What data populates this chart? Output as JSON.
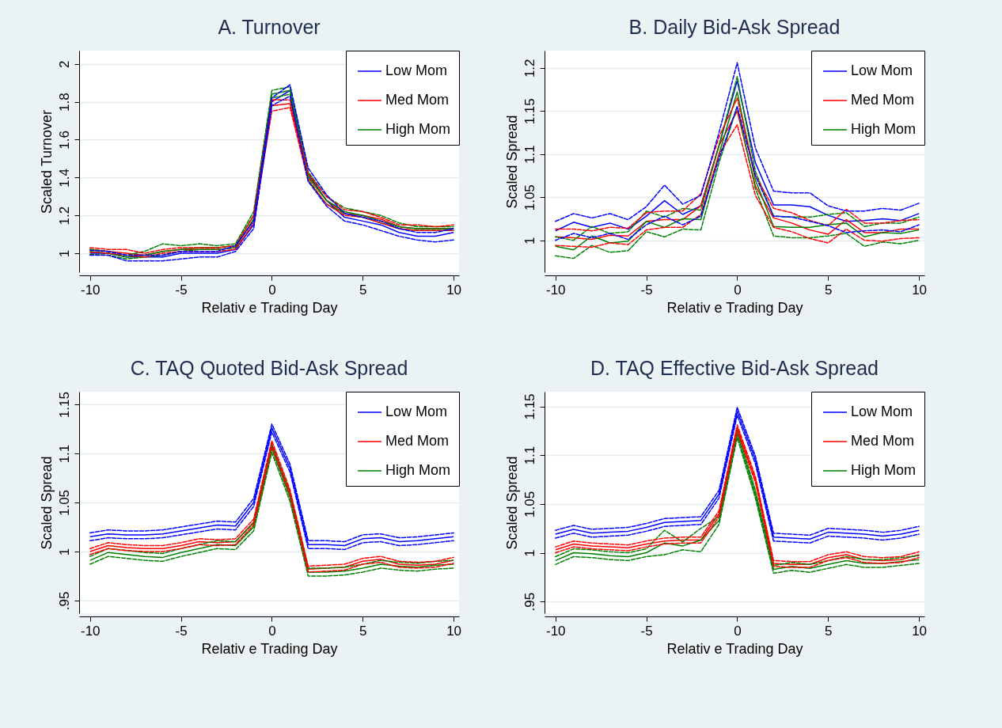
{
  "chart_data": [
    {
      "type": "line",
      "title": "A. Turnover",
      "xlabel": "Relativ e Trading Day",
      "ylabel": "Scaled Turnover",
      "x": [
        -10,
        -9,
        -8,
        -7,
        -6,
        -5,
        -4,
        -3,
        -2,
        -1,
        0,
        1,
        2,
        3,
        4,
        5,
        6,
        7,
        8,
        9,
        10
      ],
      "xlim": [
        -10.6,
        10.3
      ],
      "xticks": [
        -10,
        -5,
        0,
        5,
        10
      ],
      "ylim": [
        0.9,
        2.07
      ],
      "yticks": [
        1,
        1.2,
        1.4,
        1.6,
        1.8,
        2
      ],
      "grid": "y",
      "legend": "top right",
      "line_style": "solid",
      "series": [
        {
          "name": "Low Mom",
          "color": "#0000ff",
          "values": [
            1.0,
            1.0,
            0.98,
            0.98,
            0.98,
            1.0,
            1.0,
            1.0,
            1.02,
            1.15,
            1.8,
            1.86,
            1.42,
            1.28,
            1.19,
            1.17,
            1.15,
            1.11,
            1.09,
            1.09,
            1.11
          ]
        },
        {
          "name": "Med Mom",
          "color": "#ff0000",
          "values": [
            1.02,
            1.01,
            1.0,
            0.99,
            1.01,
            1.02,
            1.02,
            1.02,
            1.03,
            1.18,
            1.78,
            1.79,
            1.4,
            1.28,
            1.21,
            1.2,
            1.18,
            1.14,
            1.13,
            1.13,
            1.13
          ]
        },
        {
          "name": "High Mom",
          "color": "#008000",
          "values": [
            1.01,
            1.0,
            0.98,
            0.99,
            1.01,
            1.02,
            1.03,
            1.03,
            1.04,
            1.2,
            1.84,
            1.86,
            1.41,
            1.28,
            1.22,
            1.2,
            1.17,
            1.14,
            1.13,
            1.13,
            1.13
          ]
        },
        {
          "color": "#0000ff",
          "line_style": "dashed",
          "values": [
            0.99,
            0.99,
            0.96,
            0.96,
            0.96,
            0.97,
            0.98,
            0.98,
            1.01,
            1.13,
            1.78,
            1.83,
            1.38,
            1.25,
            1.17,
            1.15,
            1.12,
            1.09,
            1.07,
            1.06,
            1.07
          ]
        },
        {
          "color": "#0000ff",
          "line_style": "dashed",
          "values": [
            1.016,
            1.01,
            0.99,
            0.99,
            0.99,
            1.01,
            1.01,
            1.01,
            1.04,
            1.17,
            1.82,
            1.89,
            1.45,
            1.31,
            1.21,
            1.19,
            1.17,
            1.13,
            1.11,
            1.11,
            1.13
          ]
        },
        {
          "color": "#ff0000",
          "line_style": "dashed",
          "values": [
            1.006,
            1.0,
            0.99,
            0.98,
            1.0,
            1.01,
            1.01,
            1.01,
            1.02,
            1.16,
            1.75,
            1.77,
            1.38,
            1.26,
            1.2,
            1.19,
            1.16,
            1.13,
            1.12,
            1.12,
            1.12
          ]
        },
        {
          "color": "#ff0000",
          "line_style": "dashed",
          "values": [
            1.03,
            1.02,
            1.02,
            1.0,
            1.02,
            1.03,
            1.03,
            1.03,
            1.04,
            1.2,
            1.81,
            1.81,
            1.42,
            1.3,
            1.23,
            1.22,
            1.19,
            1.15,
            1.15,
            1.14,
            1.15
          ]
        },
        {
          "color": "#008000",
          "line_style": "dashed",
          "values": [
            0.994,
            0.99,
            0.97,
            0.98,
            0.99,
            1.01,
            1.02,
            1.02,
            1.03,
            1.18,
            1.82,
            1.84,
            1.39,
            1.26,
            1.21,
            1.19,
            1.16,
            1.13,
            1.12,
            1.12,
            1.12
          ]
        },
        {
          "color": "#008000",
          "line_style": "dashed",
          "values": [
            1.02,
            1.01,
            0.99,
            1.01,
            1.05,
            1.04,
            1.05,
            1.04,
            1.05,
            1.22,
            1.86,
            1.88,
            1.43,
            1.3,
            1.24,
            1.22,
            1.2,
            1.16,
            1.14,
            1.14,
            1.14
          ]
        }
      ]
    },
    {
      "type": "line",
      "title": "B. Daily Bid-Ask Spread",
      "xlabel": "Relativ e Trading Day",
      "ylabel": "Scaled Spread",
      "x": [
        -10,
        -9,
        -8,
        -7,
        -6,
        -5,
        -4,
        -3,
        -2,
        -1,
        0,
        1,
        2,
        3,
        4,
        5,
        6,
        7,
        8,
        9,
        10
      ],
      "xlim": [
        -10.6,
        10.3
      ],
      "xticks": [
        -10,
        -5,
        0,
        5,
        10
      ],
      "ylim": [
        0.963,
        1.22
      ],
      "yticks": [
        1,
        1.05,
        1.1,
        1.15,
        1.2
      ],
      "grid": "y",
      "legend": "top right",
      "line_style": "solid",
      "series": [
        {
          "name": "Low Mom",
          "color": "#0000ff",
          "values": [
            1.011,
            1.021,
            1.015,
            1.02,
            1.013,
            1.028,
            1.046,
            1.03,
            1.04,
            1.11,
            1.185,
            1.09,
            1.041,
            1.041,
            1.039,
            1.029,
            1.022,
            1.023,
            1.025,
            1.023,
            1.031
          ]
        },
        {
          "name": "Med Mom",
          "color": "#ff0000",
          "values": [
            1.004,
            1.003,
            1.001,
            1.006,
            1.005,
            1.022,
            1.024,
            1.024,
            1.04,
            1.11,
            1.15,
            1.063,
            1.026,
            1.02,
            1.012,
            1.007,
            1.024,
            1.009,
            1.009,
            1.013,
            1.013
          ]
        },
        {
          "name": "High Mom",
          "color": "#008000",
          "values": [
            0.993,
            0.989,
            1.005,
            0.997,
            0.999,
            1.022,
            1.015,
            1.025,
            1.024,
            1.1,
            1.172,
            1.07,
            1.016,
            1.015,
            1.015,
            1.018,
            1.02,
            1.004,
            1.009,
            1.008,
            1.012
          ]
        },
        {
          "color": "#0000ff",
          "line_style": "dashed",
          "values": [
            1.0,
            1.008,
            1.003,
            1.008,
            1.001,
            1.018,
            1.028,
            1.018,
            1.028,
            1.095,
            1.155,
            1.075,
            1.028,
            1.027,
            1.022,
            1.017,
            1.009,
            1.011,
            1.012,
            1.01,
            1.018
          ]
        },
        {
          "color": "#0000ff",
          "line_style": "dashed",
          "values": [
            1.022,
            1.031,
            1.026,
            1.031,
            1.024,
            1.039,
            1.064,
            1.042,
            1.052,
            1.125,
            1.206,
            1.107,
            1.057,
            1.055,
            1.055,
            1.04,
            1.034,
            1.034,
            1.037,
            1.035,
            1.043
          ]
        },
        {
          "color": "#ff0000",
          "line_style": "dashed",
          "values": [
            0.994,
            0.993,
            0.992,
            0.997,
            0.995,
            1.012,
            1.015,
            1.015,
            1.03,
            1.1,
            1.134,
            1.052,
            1.015,
            1.01,
            1.002,
            0.997,
            1.013,
            1.0,
            0.999,
            1.002,
            1.003
          ]
        },
        {
          "color": "#ff0000",
          "line_style": "dashed",
          "values": [
            1.013,
            1.013,
            1.011,
            1.015,
            1.014,
            1.032,
            1.034,
            1.034,
            1.054,
            1.12,
            1.165,
            1.075,
            1.037,
            1.032,
            1.023,
            1.017,
            1.036,
            1.02,
            1.02,
            1.023,
            1.024
          ]
        },
        {
          "color": "#008000",
          "line_style": "dashed",
          "values": [
            0.982,
            0.979,
            0.994,
            0.986,
            0.988,
            1.01,
            1.004,
            1.013,
            1.012,
            1.09,
            1.155,
            1.06,
            1.005,
            1.003,
            1.003,
            1.005,
            1.008,
            0.993,
            0.998,
            0.996,
            1.0
          ]
        },
        {
          "color": "#008000",
          "line_style": "dashed",
          "values": [
            1.004,
            1.0,
            1.016,
            1.008,
            1.01,
            1.034,
            1.027,
            1.037,
            1.035,
            1.11,
            1.19,
            1.08,
            1.028,
            1.027,
            1.027,
            1.03,
            1.032,
            1.016,
            1.02,
            1.02,
            1.027
          ]
        }
      ]
    },
    {
      "type": "line",
      "title": "C. TAQ Quoted Bid-Ask Spread",
      "xlabel": "Relativ e Trading Day",
      "ylabel": "Scaled Spread",
      "x": [
        -10,
        -9,
        -8,
        -7,
        -6,
        -5,
        -4,
        -3,
        -2,
        -1,
        0,
        1,
        2,
        3,
        4,
        5,
        6,
        7,
        8,
        9,
        10
      ],
      "xlim": [
        -10.6,
        10.3
      ],
      "xticks": [
        -10,
        -5,
        0,
        5,
        10
      ],
      "ylim": [
        0.937,
        1.163
      ],
      "yticks": [
        {
          "value": 0.95,
          "label": ".95"
        },
        1,
        1.05,
        1.1,
        1.15
      ],
      "grid": "y",
      "legend": "top right",
      "line_style": "solid",
      "series": [
        {
          "name": "Low Mom",
          "color": "#0000ff",
          "values": [
            1.015,
            1.018,
            1.017,
            1.017,
            1.018,
            1.021,
            1.024,
            1.027,
            1.026,
            1.05,
            1.126,
            1.085,
            1.007,
            1.007,
            1.006,
            1.013,
            1.014,
            1.01,
            1.011,
            1.013,
            1.015
          ]
        },
        {
          "name": "Med Mom",
          "color": "#ff0000",
          "values": [
            1.0,
            1.006,
            1.004,
            1.003,
            1.003,
            1.006,
            1.01,
            1.009,
            1.01,
            1.03,
            1.11,
            1.06,
            0.982,
            0.983,
            0.984,
            0.99,
            0.992,
            0.987,
            0.986,
            0.987,
            0.991
          ]
        },
        {
          "name": "High Mom",
          "color": "#008000",
          "values": [
            0.991,
            0.999,
            0.997,
            0.995,
            0.994,
            0.999,
            1.003,
            1.007,
            1.006,
            1.025,
            1.105,
            1.055,
            0.979,
            0.979,
            0.98,
            0.983,
            0.987,
            0.985,
            0.984,
            0.986,
            0.987
          ]
        },
        {
          "color": "#0000ff",
          "line_style": "dashed",
          "values": [
            1.011,
            1.014,
            1.013,
            1.013,
            1.014,
            1.017,
            1.02,
            1.023,
            1.022,
            1.046,
            1.122,
            1.081,
            1.003,
            1.003,
            1.002,
            1.009,
            1.01,
            1.006,
            1.007,
            1.009,
            1.011
          ]
        },
        {
          "color": "#0000ff",
          "line_style": "dashed",
          "values": [
            1.019,
            1.022,
            1.021,
            1.021,
            1.022,
            1.025,
            1.028,
            1.031,
            1.03,
            1.054,
            1.13,
            1.089,
            1.011,
            1.011,
            1.01,
            1.017,
            1.018,
            1.014,
            1.015,
            1.017,
            1.019
          ]
        },
        {
          "color": "#ff0000",
          "line_style": "dashed",
          "values": [
            0.997,
            1.003,
            1.001,
            1.0,
            1.0,
            1.003,
            1.007,
            1.006,
            1.007,
            1.027,
            1.107,
            1.057,
            0.979,
            0.98,
            0.981,
            0.987,
            0.989,
            0.984,
            0.983,
            0.984,
            0.988
          ]
        },
        {
          "color": "#ff0000",
          "line_style": "dashed",
          "values": [
            1.003,
            1.009,
            1.007,
            1.006,
            1.006,
            1.009,
            1.013,
            1.012,
            1.013,
            1.033,
            1.113,
            1.063,
            0.985,
            0.986,
            0.987,
            0.993,
            0.995,
            0.99,
            0.989,
            0.99,
            0.994
          ]
        },
        {
          "color": "#008000",
          "line_style": "dashed",
          "values": [
            0.987,
            0.995,
            0.993,
            0.991,
            0.99,
            0.995,
            0.999,
            1.003,
            1.002,
            1.021,
            1.101,
            1.051,
            0.975,
            0.975,
            0.976,
            0.979,
            0.983,
            0.981,
            0.98,
            0.982,
            0.983
          ]
        },
        {
          "color": "#008000",
          "line_style": "dashed",
          "values": [
            0.995,
            1.003,
            1.001,
            0.999,
            0.998,
            1.003,
            1.007,
            1.011,
            1.01,
            1.029,
            1.109,
            1.059,
            0.983,
            0.983,
            0.984,
            0.987,
            0.991,
            0.989,
            0.988,
            0.99,
            0.991
          ]
        }
      ]
    },
    {
      "type": "line",
      "title": "D. TAQ Effective Bid-Ask Spread",
      "xlabel": "Relativ e Trading Day",
      "ylabel": "Scaled Spread",
      "x": [
        -10,
        -9,
        -8,
        -7,
        -6,
        -5,
        -4,
        -3,
        -2,
        -1,
        0,
        1,
        2,
        3,
        4,
        5,
        6,
        7,
        8,
        9,
        10
      ],
      "xlim": [
        -10.6,
        10.3
      ],
      "xticks": [
        -10,
        -5,
        0,
        5,
        10
      ],
      "ylim": [
        0.938,
        1.165
      ],
      "yticks": [
        {
          "value": 0.95,
          "label": ".95"
        },
        1,
        1.05,
        1.1,
        1.15
      ],
      "grid": "y",
      "legend": "top right",
      "line_style": "solid",
      "series": [
        {
          "name": "Low Mom",
          "color": "#0000ff",
          "values": [
            1.019,
            1.024,
            1.02,
            1.021,
            1.022,
            1.026,
            1.031,
            1.032,
            1.033,
            1.06,
            1.145,
            1.095,
            1.016,
            1.015,
            1.014,
            1.021,
            1.02,
            1.019,
            1.017,
            1.019,
            1.023
          ]
        },
        {
          "name": "Med Mom",
          "color": "#ff0000",
          "values": [
            1.003,
            1.009,
            1.007,
            1.006,
            1.005,
            1.009,
            1.012,
            1.013,
            1.013,
            1.04,
            1.128,
            1.075,
            0.989,
            0.988,
            0.988,
            0.995,
            0.998,
            0.993,
            0.992,
            0.993,
            0.998
          ]
        },
        {
          "name": "High Mom",
          "color": "#008000",
          "values": [
            0.992,
            1.0,
            0.999,
            0.997,
            0.996,
            1.0,
            1.01,
            1.007,
            1.013,
            1.033,
            1.122,
            1.06,
            0.983,
            0.986,
            0.984,
            0.988,
            0.992,
            0.989,
            0.989,
            0.991,
            0.993
          ]
        },
        {
          "color": "#0000ff",
          "line_style": "dashed",
          "values": [
            1.015,
            1.02,
            1.016,
            1.017,
            1.018,
            1.022,
            1.027,
            1.028,
            1.029,
            1.056,
            1.141,
            1.091,
            1.012,
            1.011,
            1.01,
            1.017,
            1.016,
            1.015,
            1.013,
            1.015,
            1.019
          ]
        },
        {
          "color": "#0000ff",
          "line_style": "dashed",
          "values": [
            1.023,
            1.028,
            1.024,
            1.025,
            1.026,
            1.03,
            1.035,
            1.036,
            1.037,
            1.064,
            1.149,
            1.099,
            1.02,
            1.019,
            1.018,
            1.025,
            1.024,
            1.023,
            1.021,
            1.023,
            1.027
          ]
        },
        {
          "color": "#ff0000",
          "line_style": "dashed",
          "values": [
            1.0,
            1.006,
            1.004,
            1.003,
            1.002,
            1.006,
            1.009,
            1.01,
            1.01,
            1.037,
            1.125,
            1.072,
            0.986,
            0.985,
            0.985,
            0.992,
            0.995,
            0.99,
            0.989,
            0.99,
            0.995
          ]
        },
        {
          "color": "#ff0000",
          "line_style": "dashed",
          "values": [
            1.006,
            1.012,
            1.01,
            1.009,
            1.008,
            1.012,
            1.015,
            1.016,
            1.016,
            1.043,
            1.131,
            1.078,
            0.992,
            0.991,
            0.991,
            0.998,
            1.001,
            0.996,
            0.995,
            0.996,
            1.001
          ]
        },
        {
          "color": "#008000",
          "line_style": "dashed",
          "values": [
            0.988,
            0.996,
            0.995,
            0.993,
            0.992,
            0.996,
            0.998,
            1.003,
            1.001,
            1.029,
            1.118,
            1.056,
            0.979,
            0.982,
            0.98,
            0.984,
            0.988,
            0.985,
            0.985,
            0.987,
            0.989
          ]
        },
        {
          "color": "#008000",
          "line_style": "dashed",
          "values": [
            0.996,
            1.004,
            1.003,
            1.001,
            1.0,
            1.004,
            1.023,
            1.011,
            1.025,
            1.037,
            1.126,
            1.064,
            0.987,
            0.99,
            0.988,
            0.992,
            0.996,
            0.993,
            0.993,
            0.995,
            0.997
          ]
        }
      ]
    }
  ]
}
